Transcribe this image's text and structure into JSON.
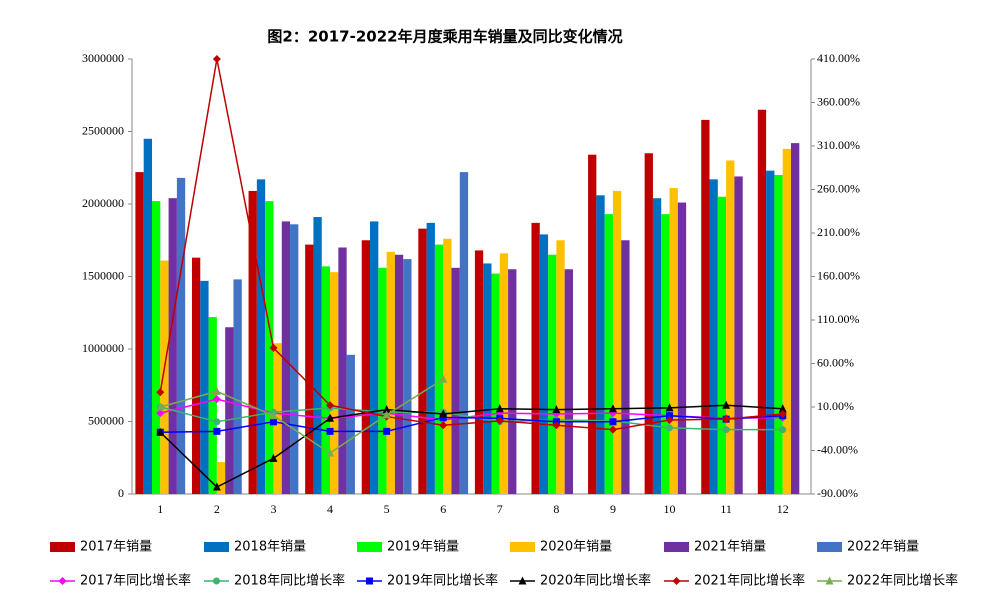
{
  "chart_data": {
    "type": "bar",
    "title": "图2：2017-2022年月度乘用车销量及同比变化情况",
    "categories": [
      "1",
      "2",
      "3",
      "4",
      "5",
      "6",
      "7",
      "8",
      "9",
      "10",
      "11",
      "12"
    ],
    "ylim": [
      0,
      3000000
    ],
    "yticks": [
      0,
      500000,
      1000000,
      1500000,
      2000000,
      2500000,
      3000000
    ],
    "y2lim": [
      -90,
      410
    ],
    "y2ticks": [
      {
        "value": -90,
        "label": "-90.00%"
      },
      {
        "value": -40,
        "label": "-40.00%"
      },
      {
        "value": 10,
        "label": "10.00%"
      },
      {
        "value": 60,
        "label": "60.00%"
      },
      {
        "value": 110,
        "label": "110.00%"
      },
      {
        "value": 160,
        "label": "160.00%"
      },
      {
        "value": 210,
        "label": "210.00%"
      },
      {
        "value": 260,
        "label": "260.00%"
      },
      {
        "value": 310,
        "label": "310.00%"
      },
      {
        "value": 360,
        "label": "360.00%"
      },
      {
        "value": 410,
        "label": "410.00%"
      }
    ],
    "series": [
      {
        "name": "2017年销量",
        "type": "bar",
        "color": "#c00000",
        "values": [
          2220000,
          1630000,
          2090000,
          1720000,
          1750000,
          1830000,
          1680000,
          1870000,
          2340000,
          2350000,
          2580000,
          2650000
        ]
      },
      {
        "name": "2018年销量",
        "type": "bar",
        "color": "#0070c0",
        "values": [
          2450000,
          1470000,
          2170000,
          1910000,
          1880000,
          1870000,
          1590000,
          1790000,
          2060000,
          2040000,
          2170000,
          2230000
        ]
      },
      {
        "name": "2019年销量",
        "type": "bar",
        "color": "#00ff00",
        "values": [
          2020000,
          1220000,
          2020000,
          1570000,
          1560000,
          1720000,
          1520000,
          1650000,
          1930000,
          1930000,
          2050000,
          2200000
        ]
      },
      {
        "name": "2020年销量",
        "type": "bar",
        "color": "#ffc000",
        "values": [
          1610000,
          220000,
          1040000,
          1530000,
          1670000,
          1760000,
          1660000,
          1750000,
          2090000,
          2110000,
          2300000,
          2380000
        ]
      },
      {
        "name": "2021年销量",
        "type": "bar",
        "color": "#7030a0",
        "values": [
          2040000,
          1150000,
          1880000,
          1700000,
          1650000,
          1560000,
          1550000,
          1550000,
          1750000,
          2010000,
          2190000,
          2420000
        ]
      },
      {
        "name": "2022年销量",
        "type": "bar",
        "color": "#4472c4",
        "values": [
          2180000,
          1480000,
          1860000,
          960000,
          1620000,
          2220000,
          null,
          null,
          null,
          null,
          null,
          null
        ]
      },
      {
        "name": "2017年同比增长率",
        "type": "line",
        "axis": "y2",
        "marker": "diamond",
        "color": "#ff00ff",
        "values": [
          3,
          19,
          3,
          -3,
          3,
          -5,
          3,
          2,
          3,
          0,
          -3,
          -2
        ]
      },
      {
        "name": "2018年同比增长率",
        "type": "line",
        "axis": "y2",
        "marker": "circle",
        "color": "#3cb371",
        "values": [
          10,
          -7,
          4,
          9,
          4,
          4,
          -7,
          -5,
          -6,
          -14,
          -16,
          -16
        ]
      },
      {
        "name": "2019年同比增长率",
        "type": "line",
        "axis": "y2",
        "marker": "square",
        "color": "#0000ff",
        "values": [
          -19,
          -18,
          -7,
          -18,
          -18,
          -2,
          -3,
          -7,
          -7,
          0,
          -4,
          0
        ]
      },
      {
        "name": "2020年同比增长率",
        "type": "line",
        "axis": "y2",
        "marker": "triangle",
        "color": "#000000",
        "values": [
          -19,
          -82,
          -49,
          -3,
          7,
          2,
          8,
          7,
          8,
          9,
          12,
          8
        ]
      },
      {
        "name": "2021年同比增长率",
        "type": "line",
        "axis": "y2",
        "marker": "diamond",
        "color": "#c00000",
        "values": [
          27,
          410,
          78,
          12,
          -1,
          -11,
          -6,
          -11,
          -16,
          -5,
          -4,
          2
        ]
      },
      {
        "name": "2022年同比增长率",
        "type": "line",
        "axis": "y2",
        "marker": "triangle",
        "color": "#77ac4f",
        "values": [
          10,
          28,
          0,
          -43,
          1,
          42,
          null,
          null,
          null,
          null,
          null,
          null
        ]
      }
    ]
  }
}
